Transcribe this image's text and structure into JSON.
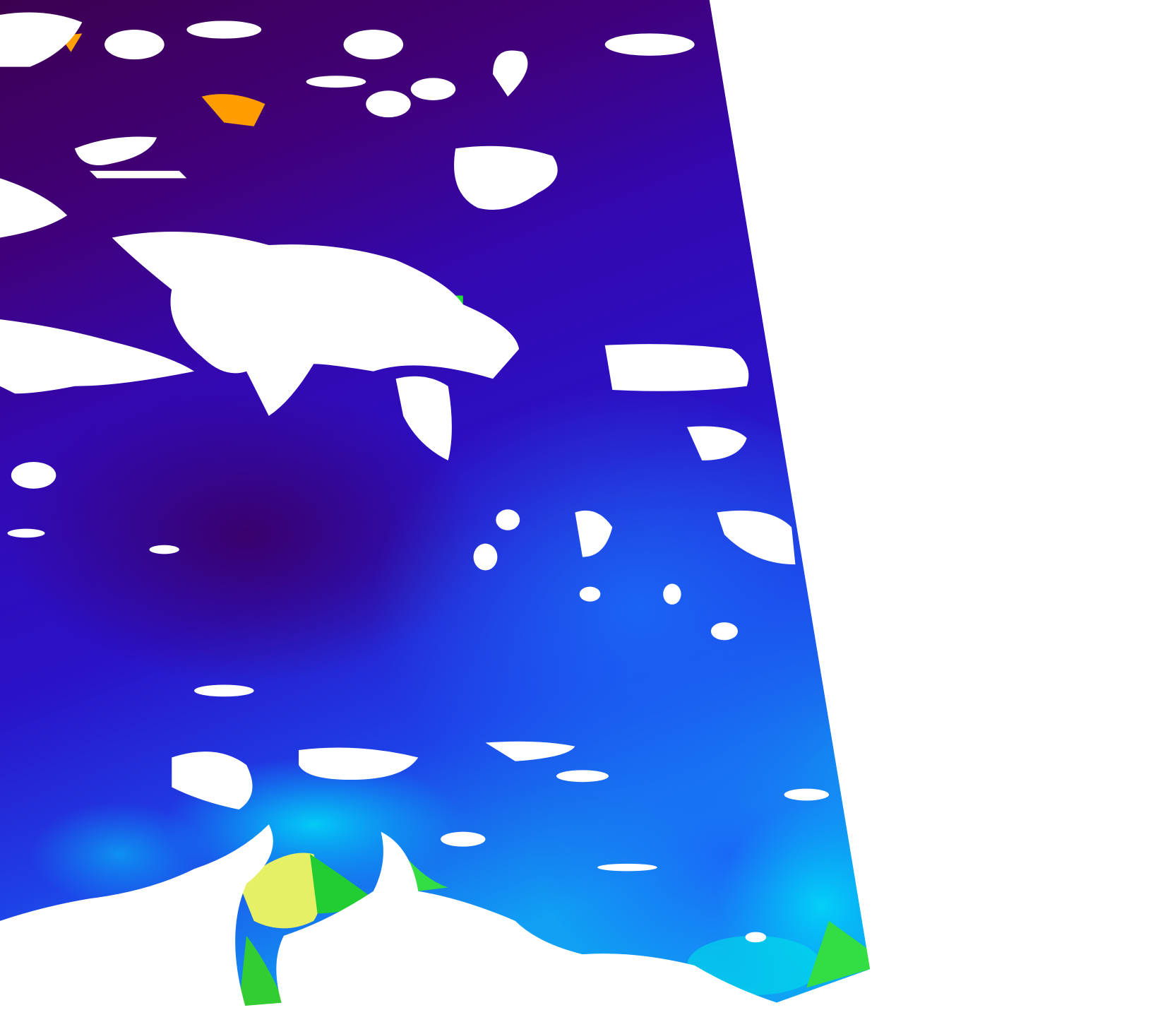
{
  "image": {
    "kind": "satellite-swath",
    "colors": {
      "background": "#ffffff",
      "deep_low": "#3d0050",
      "low": "#2a0fc8",
      "mid": "#1a5cf0",
      "mid_high": "#00c8f8",
      "high": "#22dd33",
      "very_high": "#e8f060",
      "peak": "#ff9a00",
      "cloud_land_mask": "#ffffff"
    }
  }
}
